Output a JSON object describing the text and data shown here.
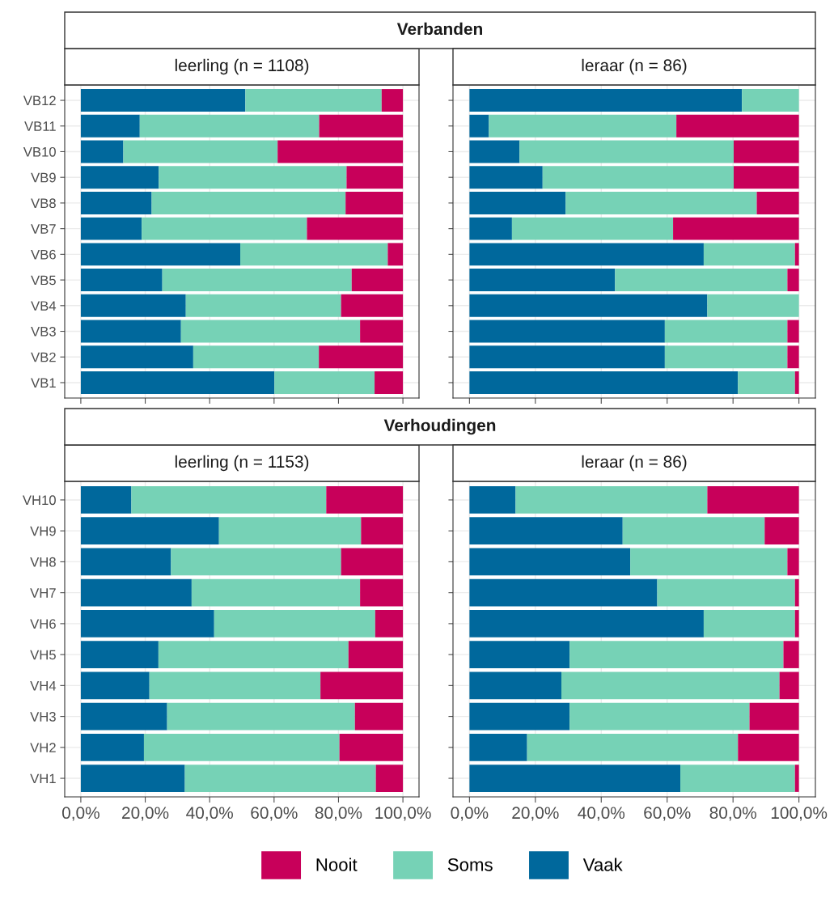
{
  "chart_data": [
    {
      "type": "bar",
      "orientation": "horizontal",
      "stacked": true,
      "title": "Verbanden",
      "subtitle": "leerling (n = 1108)",
      "legend": "bottom",
      "categories": [
        "VB12",
        "VB11",
        "VB10",
        "VB9",
        "VB8",
        "VB7",
        "VB6",
        "VB5",
        "VB4",
        "VB3",
        "VB2",
        "VB1"
      ],
      "series": [
        {
          "name": "Vaak",
          "color": "#00689c",
          "values": [
            51.1,
            18.3,
            13.2,
            24.2,
            22.0,
            18.9,
            49.5,
            25.3,
            32.6,
            31.1,
            34.9,
            60.1
          ]
        },
        {
          "name": "Soms",
          "color": "#76d2b6",
          "values": [
            42.3,
            55.7,
            47.9,
            58.3,
            60.2,
            51.3,
            45.8,
            58.8,
            48.2,
            55.6,
            39.0,
            31.1
          ]
        },
        {
          "name": "Nooit",
          "color": "#c8005a",
          "values": [
            6.6,
            26.0,
            38.9,
            17.5,
            17.8,
            29.8,
            4.7,
            15.9,
            19.2,
            13.3,
            26.1,
            8.8
          ]
        }
      ],
      "xlim": [
        -5,
        105
      ],
      "xticks": [
        {
          "value": 0,
          "label": null
        },
        {
          "value": 20,
          "label": null
        },
        {
          "value": 40,
          "label": null
        },
        {
          "value": 60,
          "label": null
        },
        {
          "value": 80,
          "label": null
        },
        {
          "value": 100,
          "label": null
        }
      ],
      "grid": true,
      "tick_labels": "y"
    },
    {
      "type": "bar",
      "orientation": "horizontal",
      "stacked": true,
      "subtitle": "leraar (n = 86)",
      "categories": [
        null,
        null,
        null,
        null,
        null,
        null,
        null,
        null,
        null,
        null,
        null,
        null
      ],
      "series": [
        {
          "color": "#00689c",
          "values": [
            82.7,
            5.9,
            15.2,
            22.2,
            29.2,
            12.9,
            71.1,
            44.2,
            72.2,
            59.3,
            59.3,
            81.5
          ]
        },
        {
          "color": "#76d2b6",
          "values": [
            17.3,
            56.9,
            65.0,
            58.0,
            58.0,
            48.9,
            27.7,
            52.3,
            27.8,
            37.2,
            37.2,
            17.3
          ]
        },
        {
          "color": "#c8005a",
          "values": [
            0,
            37.2,
            19.8,
            19.8,
            12.8,
            38.2,
            1.2,
            3.5,
            0,
            3.5,
            3.5,
            1.2
          ]
        }
      ],
      "xlim": [
        -5,
        105
      ],
      "xticks": [
        {
          "value": 0,
          "label": null
        },
        {
          "value": 20,
          "label": null
        },
        {
          "value": 40,
          "label": null
        },
        {
          "value": 60,
          "label": null
        },
        {
          "value": 80,
          "label": null
        },
        {
          "value": 100,
          "label": null
        }
      ],
      "grid": true,
      "tick_labels": false
    },
    {
      "type": "bar",
      "orientation": "horizontal",
      "stacked": true,
      "title": "Verhoudingen",
      "subtitle": "leerling (n = 1153)",
      "categories": [
        "VH10",
        "VH9",
        "VH8",
        "VH7",
        "VH6",
        "VH5",
        "VH4",
        "VH3",
        "VH2",
        "VH1"
      ],
      "series": [
        {
          "color": "#00689c",
          "values": [
            15.7,
            42.9,
            28.0,
            34.4,
            41.4,
            24.1,
            21.3,
            26.8,
            19.6,
            32.3
          ]
        },
        {
          "color": "#76d2b6",
          "values": [
            60.5,
            44.1,
            52.8,
            52.3,
            50.0,
            59.0,
            53.1,
            58.3,
            60.7,
            59.3
          ]
        },
        {
          "color": "#c8005a",
          "values": [
            23.8,
            13.0,
            19.2,
            13.3,
            8.6,
            16.9,
            25.6,
            14.9,
            19.7,
            8.4
          ]
        }
      ],
      "xlim": [
        -5,
        105
      ],
      "xticks": [
        {
          "value": 0,
          "label": "0,0%"
        },
        {
          "value": 20,
          "label": "20,0%"
        },
        {
          "value": 40,
          "label": "40,0%"
        },
        {
          "value": 60,
          "label": "60,0%"
        },
        {
          "value": 80,
          "label": "80,0%"
        },
        {
          "value": 100,
          "label": "100,0%"
        }
      ],
      "grid": true
    },
    {
      "type": "bar",
      "orientation": "horizontal",
      "stacked": true,
      "subtitle": "leraar (n = 86)",
      "categories": [
        null,
        null,
        null,
        null,
        null,
        null,
        null,
        null,
        null,
        null
      ],
      "series": [
        {
          "color": "#00689c",
          "values": [
            14.0,
            46.5,
            48.8,
            57.0,
            71.1,
            30.4,
            27.9,
            30.4,
            17.5,
            64.0
          ]
        },
        {
          "color": "#76d2b6",
          "values": [
            58.2,
            43.1,
            47.7,
            41.8,
            27.7,
            64.9,
            66.2,
            54.6,
            64.0,
            34.8
          ]
        },
        {
          "color": "#c8005a",
          "values": [
            27.8,
            10.4,
            3.5,
            1.2,
            1.2,
            4.7,
            5.9,
            15.0,
            18.5,
            1.2
          ]
        }
      ],
      "xlim": [
        -5,
        105
      ],
      "xticks": [
        {
          "value": 0,
          "label": "0,0%"
        },
        {
          "value": 20,
          "label": "20,0%"
        },
        {
          "value": 40,
          "label": "40,0%"
        },
        {
          "value": 60,
          "label": "60,0%"
        },
        {
          "value": 80,
          "label": "80,0%"
        },
        {
          "value": 100,
          "label": "100,0%"
        }
      ],
      "grid": true,
      "tick_labels": "x"
    }
  ]
}
